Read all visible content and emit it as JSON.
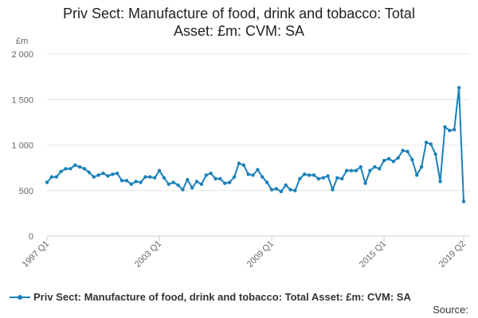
{
  "chart_data": {
    "type": "line",
    "title_line1": "Priv Sect: Manufacture of food, drink and tobacco: Total",
    "title_line2": "Asset: £m: CVM: SA",
    "ylabel": "£m",
    "ylim": [
      0,
      2000
    ],
    "yticks": [
      0,
      500,
      1000,
      1500,
      2000
    ],
    "ytick_labels": [
      "0",
      "500",
      "1 000",
      "1 500",
      "2 000"
    ],
    "xtick_labels": [
      "1997 Q1",
      "2003 Q1",
      "2009 Q1",
      "2015 Q1",
      "2019 Q2"
    ],
    "xtick_index": [
      0,
      24,
      48,
      72,
      89
    ],
    "grid": true,
    "legend_position": "bottom",
    "source_label": "Source:",
    "colors": {
      "series": "#1a81b9",
      "grid": "#e6e6e6",
      "axis": "#cccccc"
    },
    "series": [
      {
        "name": "Priv Sect: Manufacture of food, drink and tobacco: Total Asset: £m: CVM: SA",
        "x": [
          "1997 Q1",
          "1997 Q2",
          "1997 Q3",
          "1997 Q4",
          "1998 Q1",
          "1998 Q2",
          "1998 Q3",
          "1998 Q4",
          "1999 Q1",
          "1999 Q2",
          "1999 Q3",
          "1999 Q4",
          "2000 Q1",
          "2000 Q2",
          "2000 Q3",
          "2000 Q4",
          "2001 Q1",
          "2001 Q2",
          "2001 Q3",
          "2001 Q4",
          "2002 Q1",
          "2002 Q2",
          "2002 Q3",
          "2002 Q4",
          "2003 Q1",
          "2003 Q2",
          "2003 Q3",
          "2003 Q4",
          "2004 Q1",
          "2004 Q2",
          "2004 Q3",
          "2004 Q4",
          "2005 Q1",
          "2005 Q2",
          "2005 Q3",
          "2005 Q4",
          "2006 Q1",
          "2006 Q2",
          "2006 Q3",
          "2006 Q4",
          "2007 Q1",
          "2007 Q2",
          "2007 Q3",
          "2007 Q4",
          "2008 Q1",
          "2008 Q2",
          "2008 Q3",
          "2008 Q4",
          "2009 Q1",
          "2009 Q2",
          "2009 Q3",
          "2009 Q4",
          "2010 Q1",
          "2010 Q2",
          "2010 Q3",
          "2010 Q4",
          "2011 Q1",
          "2011 Q2",
          "2011 Q3",
          "2011 Q4",
          "2012 Q1",
          "2012 Q2",
          "2012 Q3",
          "2012 Q4",
          "2013 Q1",
          "2013 Q2",
          "2013 Q3",
          "2013 Q4",
          "2014 Q1",
          "2014 Q2",
          "2014 Q3",
          "2014 Q4",
          "2015 Q1",
          "2015 Q2",
          "2015 Q3",
          "2015 Q4",
          "2016 Q1",
          "2016 Q2",
          "2016 Q3",
          "2016 Q4",
          "2017 Q1",
          "2017 Q2",
          "2017 Q3",
          "2017 Q4",
          "2018 Q1",
          "2018 Q2",
          "2018 Q3",
          "2018 Q4",
          "2019 Q1",
          "2019 Q2"
        ],
        "values": [
          590,
          650,
          650,
          710,
          740,
          740,
          780,
          760,
          740,
          700,
          650,
          670,
          690,
          660,
          680,
          690,
          610,
          610,
          570,
          600,
          590,
          650,
          650,
          640,
          720,
          640,
          570,
          590,
          560,
          510,
          620,
          530,
          600,
          570,
          670,
          690,
          630,
          630,
          580,
          590,
          650,
          800,
          780,
          680,
          670,
          730,
          650,
          590,
          510,
          520,
          490,
          560,
          510,
          500,
          630,
          680,
          670,
          670,
          630,
          640,
          660,
          510,
          640,
          630,
          720,
          720,
          720,
          760,
          580,
          720,
          760,
          740,
          830,
          850,
          820,
          860,
          940,
          930,
          840,
          670,
          760,
          1030,
          1010,
          900,
          600,
          1200,
          1160,
          1170,
          1630,
          380
        ]
      }
    ]
  }
}
